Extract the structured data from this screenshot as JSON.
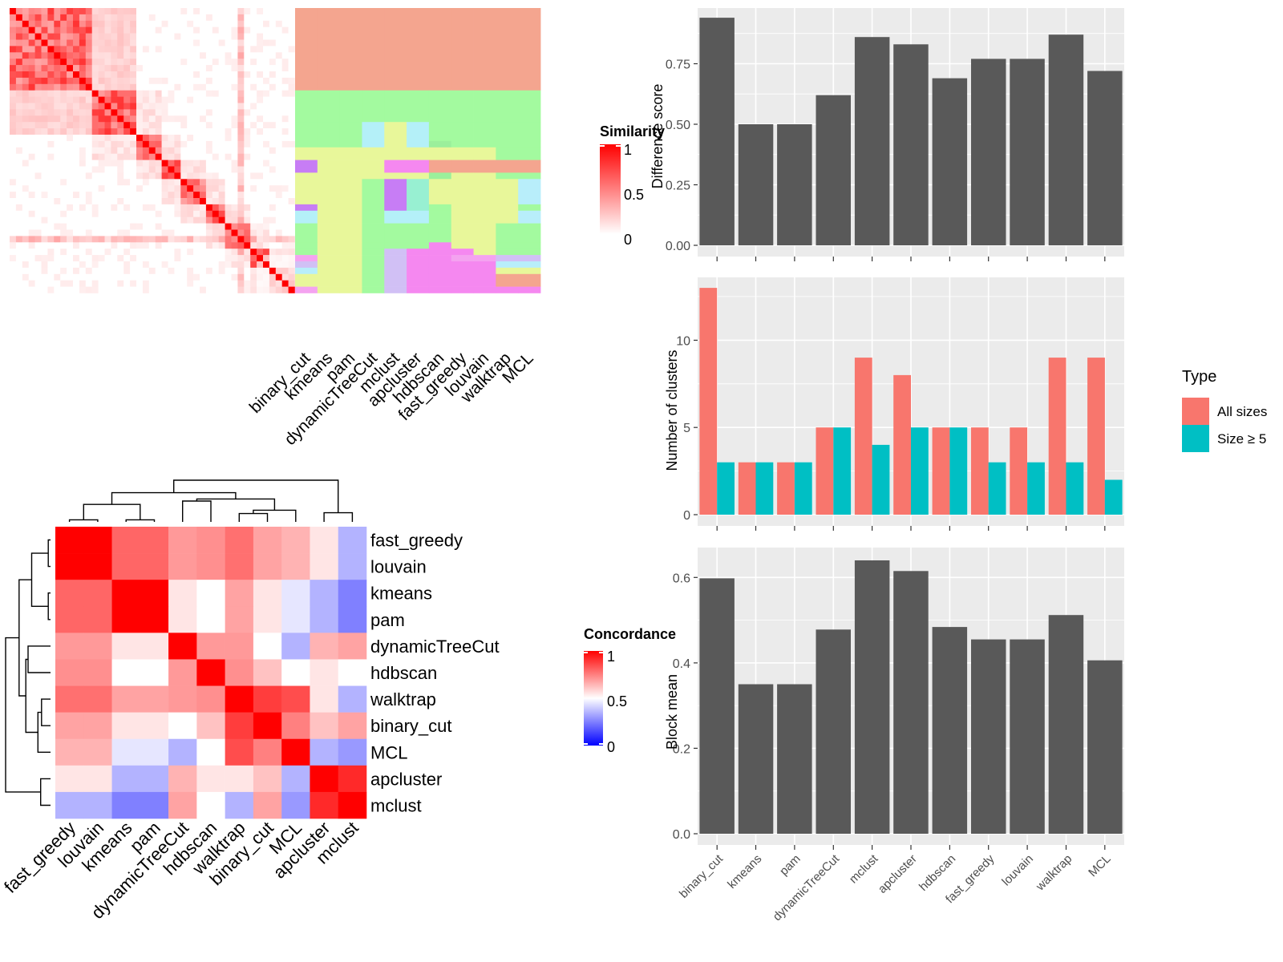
{
  "chart_data": [
    {
      "type": "heatmap",
      "id": "similarity",
      "legend_title": "Similarity",
      "legend_ticks": [
        "1",
        "0.5",
        "0"
      ],
      "columns": [
        "binary_cut",
        "kmeans",
        "pam",
        "dynamicTreeCut",
        "mclust",
        "apcluster",
        "hdbscan",
        "fast_greedy",
        "louvain",
        "walktrap",
        "MCL"
      ],
      "n_items": 45,
      "notes": "left block: item-by-item similarity matrix (white=0, red=1); right block: cluster membership per method, one color per cluster"
    },
    {
      "type": "heatmap",
      "id": "concordance",
      "legend_title": "Concordance",
      "legend_ticks": [
        "1",
        "0.5",
        "0"
      ],
      "rows": [
        "fast_greedy",
        "louvain",
        "kmeans",
        "pam",
        "dynamicTreeCut",
        "hdbscan",
        "walktrap",
        "binary_cut",
        "MCL",
        "apcluster",
        "mclust"
      ],
      "cols": [
        "fast_greedy",
        "louvain",
        "kmeans",
        "pam",
        "dynamicTreeCut",
        "hdbscan",
        "walktrap",
        "binary_cut",
        "MCL",
        "apcluster",
        "mclust"
      ],
      "values": [
        [
          1.0,
          1.0,
          0.8,
          0.8,
          0.7,
          0.72,
          0.78,
          0.68,
          0.65,
          0.55,
          0.35
        ],
        [
          1.0,
          1.0,
          0.8,
          0.8,
          0.7,
          0.72,
          0.78,
          0.68,
          0.65,
          0.55,
          0.35
        ],
        [
          0.8,
          0.8,
          1.0,
          1.0,
          0.55,
          0.5,
          0.68,
          0.55,
          0.45,
          0.35,
          0.25
        ],
        [
          0.8,
          0.8,
          1.0,
          1.0,
          0.55,
          0.5,
          0.68,
          0.55,
          0.45,
          0.35,
          0.25
        ],
        [
          0.7,
          0.7,
          0.55,
          0.55,
          1.0,
          0.7,
          0.7,
          0.5,
          0.35,
          0.65,
          0.68
        ],
        [
          0.72,
          0.72,
          0.5,
          0.5,
          0.7,
          1.0,
          0.72,
          0.62,
          0.5,
          0.55,
          0.5
        ],
        [
          0.78,
          0.78,
          0.68,
          0.68,
          0.7,
          0.72,
          1.0,
          0.88,
          0.85,
          0.55,
          0.35
        ],
        [
          0.68,
          0.68,
          0.55,
          0.55,
          0.5,
          0.62,
          0.88,
          1.0,
          0.75,
          0.62,
          0.68
        ],
        [
          0.65,
          0.65,
          0.45,
          0.45,
          0.35,
          0.5,
          0.85,
          0.75,
          1.0,
          0.35,
          0.3
        ],
        [
          0.55,
          0.55,
          0.35,
          0.35,
          0.65,
          0.55,
          0.55,
          0.62,
          0.35,
          1.0,
          0.92
        ],
        [
          0.35,
          0.35,
          0.25,
          0.25,
          0.68,
          0.5,
          0.35,
          0.68,
          0.3,
          0.92,
          1.0
        ]
      ]
    },
    {
      "type": "bar",
      "id": "difference",
      "ylabel": "Difference score",
      "categories": [
        "binary_cut",
        "kmeans",
        "pam",
        "dynamicTreeCut",
        "mclust",
        "apcluster",
        "hdbscan",
        "fast_greedy",
        "louvain",
        "walktrap",
        "MCL"
      ],
      "values": [
        0.94,
        0.5,
        0.5,
        0.62,
        0.86,
        0.83,
        0.69,
        0.77,
        0.77,
        0.87,
        0.72
      ],
      "ylim": [
        0,
        0.98
      ],
      "yticks": [
        0,
        0.25,
        0.5,
        0.75
      ],
      "ytick_labels": [
        "0.00",
        "0.25",
        "0.50",
        "0.75"
      ],
      "color": "#595959"
    },
    {
      "type": "bar",
      "id": "nclusters",
      "ylabel": "Number of clusters",
      "categories": [
        "binary_cut",
        "kmeans",
        "pam",
        "dynamicTreeCut",
        "mclust",
        "apcluster",
        "hdbscan",
        "fast_greedy",
        "louvain",
        "walktrap",
        "MCL"
      ],
      "series": [
        {
          "name": "All sizes",
          "color": "#F8766D",
          "values": [
            13,
            3,
            3,
            5,
            9,
            8,
            5,
            5,
            5,
            9,
            9
          ]
        },
        {
          "name": "Size ≥ 5",
          "color": "#00BFC4",
          "values": [
            3,
            3,
            3,
            5,
            4,
            5,
            5,
            3,
            3,
            3,
            2
          ]
        }
      ],
      "ylim": [
        0,
        13.6
      ],
      "yticks": [
        0,
        5,
        10
      ],
      "ytick_labels": [
        "0",
        "5",
        "10"
      ],
      "legend_title": "Type",
      "legend_position": "right"
    },
    {
      "type": "bar",
      "id": "blockmean",
      "ylabel": "Block mean",
      "categories": [
        "binary_cut",
        "kmeans",
        "pam",
        "dynamicTreeCut",
        "mclust",
        "apcluster",
        "hdbscan",
        "fast_greedy",
        "louvain",
        "walktrap",
        "MCL"
      ],
      "values": [
        0.598,
        0.35,
        0.35,
        0.478,
        0.64,
        0.615,
        0.484,
        0.455,
        0.455,
        0.512,
        0.406
      ],
      "ylim": [
        0,
        0.67
      ],
      "yticks": [
        0,
        0.2,
        0.4,
        0.6
      ],
      "ytick_labels": [
        "0.0",
        "0.2",
        "0.4",
        "0.6"
      ],
      "color": "#595959"
    }
  ]
}
